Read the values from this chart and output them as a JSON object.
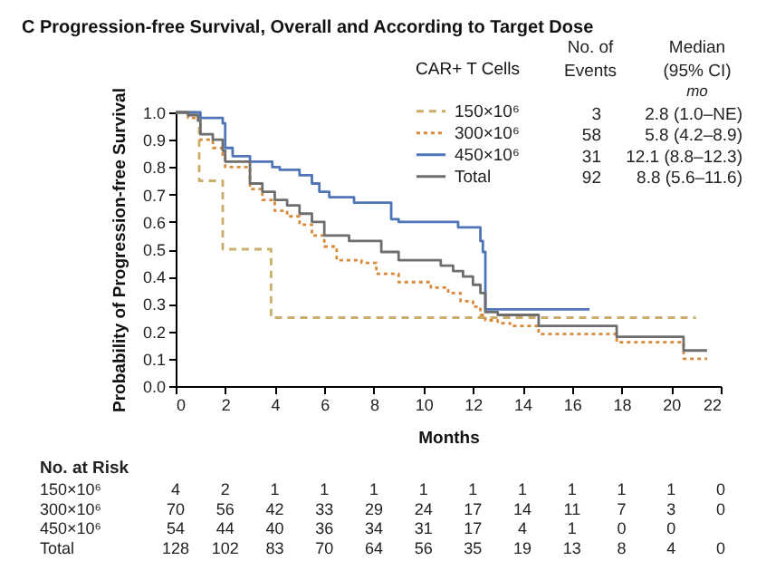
{
  "chart_data": {
    "type": "step",
    "title": "C Progression-free Survival, Overall and According to Target Dose",
    "xlabel": "Months",
    "ylabel": "Probability of Progression-free Survival",
    "legend_title": "CAR+ T Cells",
    "legend": "top right",
    "marker": "none",
    "xlim": [
      0,
      22
    ],
    "xticks": [
      0,
      2,
      4,
      6,
      8,
      10,
      12,
      14,
      16,
      18,
      20,
      22
    ],
    "ylim": [
      0,
      1
    ],
    "yticks": [
      {
        "value": 0,
        "label": "0.0"
      },
      0.1,
      0.2,
      0.3,
      0.4,
      0.5,
      0.6,
      0.7,
      0.8,
      0.9,
      {
        "value": 1,
        "label": "1.0"
      }
    ],
    "series": [
      {
        "name": "150×10⁶",
        "color": "#c9ad68",
        "line_style": "dashed",
        "x": [
          0,
          0.95,
          1.9,
          3.85,
          21.0
        ],
        "values": [
          1,
          0.75,
          0.5,
          0.25,
          0.25
        ]
      },
      {
        "name": "300×10⁶",
        "color": "#d8893a",
        "line_style": "dotted",
        "x": [
          0,
          0.5,
          1.0,
          1.5,
          1.9,
          2.0,
          3.0,
          3.5,
          4.0,
          4.5,
          5.0,
          5.5,
          6.0,
          6.5,
          7.5,
          8.1,
          9.0,
          10.3,
          11.0,
          11.5,
          12.0,
          12.3,
          12.5,
          13.0,
          13.5,
          14.65,
          17.8,
          20.5,
          21.45
        ],
        "values": [
          1,
          0.98,
          0.9,
          0.87,
          0.84,
          0.8,
          0.72,
          0.68,
          0.64,
          0.62,
          0.59,
          0.55,
          0.51,
          0.46,
          0.45,
          0.41,
          0.38,
          0.36,
          0.34,
          0.31,
          0.29,
          0.26,
          0.24,
          0.23,
          0.22,
          0.19,
          0.16,
          0.1,
          0.1
        ]
      },
      {
        "name": "450×10⁶",
        "color": "#4f75b8",
        "line_style": "solid",
        "x": [
          0,
          1.0,
          1.9,
          2.0,
          2.3,
          3.0,
          3.9,
          4.2,
          5.0,
          5.5,
          5.8,
          6.2,
          7.2,
          8.7,
          9.0,
          11.4,
          12.3,
          12.4,
          12.5,
          16.7
        ],
        "values": [
          1,
          0.98,
          0.96,
          0.87,
          0.84,
          0.82,
          0.8,
          0.79,
          0.77,
          0.74,
          0.71,
          0.69,
          0.67,
          0.61,
          0.6,
          0.58,
          0.53,
          0.49,
          0.28,
          0.28
        ]
      },
      {
        "name": "Total",
        "color": "#6e6e6e",
        "line_style": "solid",
        "x": [
          0,
          0.5,
          0.9,
          1.0,
          1.5,
          1.9,
          2.0,
          3.0,
          3.5,
          4.0,
          4.5,
          5.0,
          5.5,
          6.0,
          7.0,
          8.3,
          9.0,
          10.7,
          11.2,
          11.6,
          12.0,
          12.3,
          12.5,
          13.0,
          14.65,
          17.8,
          20.5,
          21.45
        ],
        "values": [
          1,
          0.99,
          0.97,
          0.92,
          0.9,
          0.86,
          0.82,
          0.74,
          0.71,
          0.68,
          0.66,
          0.63,
          0.6,
          0.55,
          0.53,
          0.49,
          0.46,
          0.44,
          0.42,
          0.4,
          0.37,
          0.34,
          0.27,
          0.26,
          0.22,
          0.18,
          0.13,
          0.13
        ]
      }
    ],
    "annotations": [
      "No. of",
      "Events",
      "Median",
      "(95% CI)",
      "mo",
      "3",
      "2.8 (1.0–NE)",
      "58",
      "5.8 (4.2–8.9)",
      "31",
      "12.1 (8.8–12.3)",
      "92",
      "8.8 (5.6–11.6)",
      "No. at Risk",
      "150×10⁶",
      "4 2 1 1 1 1 1 1 1 1 1 0",
      "300×10⁶",
      "70 56 42 33 29 24 17 14 11 7 3 0",
      "450×10⁶",
      "54 44 40 36 34 31 17 4 1 0 0",
      "Total",
      "128 102 83 70 64 56 35 19 13 8 4 0"
    ]
  }
}
